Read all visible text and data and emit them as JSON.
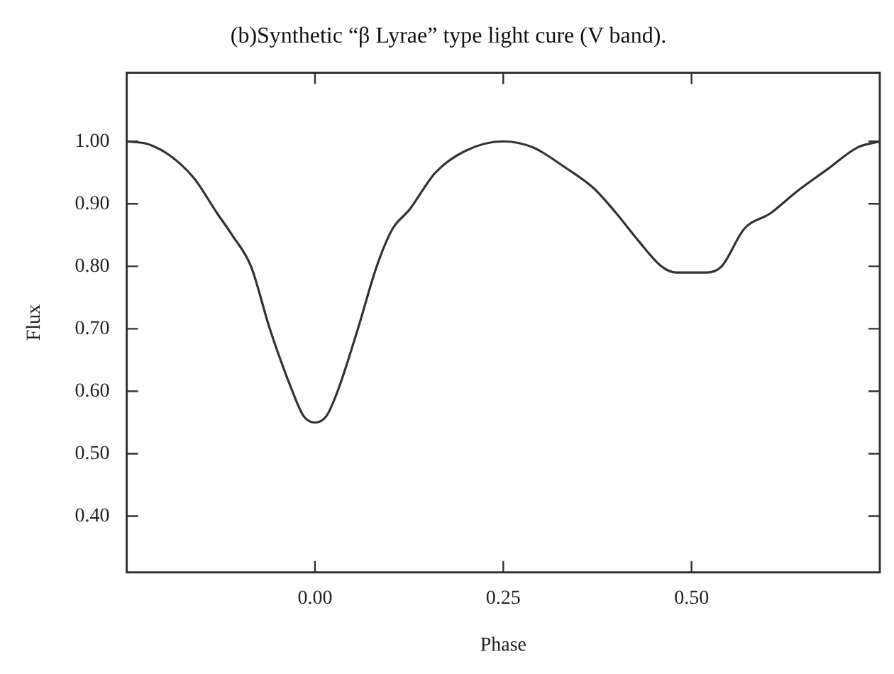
{
  "chart_data": {
    "type": "line",
    "title": "(b)Synthetic “β Lyrae” type light cure (V band).",
    "xlabel": "Phase",
    "ylabel": "Flux",
    "x": [
      -0.25,
      -0.22,
      -0.19,
      -0.16,
      -0.13,
      -0.11,
      -0.085,
      -0.06,
      -0.03,
      -0.015,
      0,
      0.015,
      0.03,
      0.057,
      0.082,
      0.103,
      0.125,
      0.16,
      0.2,
      0.25,
      0.29,
      0.33,
      0.37,
      0.4,
      0.43,
      0.46,
      0.48,
      0.52,
      0.54,
      0.57,
      0.605,
      0.64,
      0.68,
      0.72,
      0.75
    ],
    "series": [
      {
        "color": "#333333",
        "values": [
          1.0,
          0.995,
          0.975,
          0.94,
          0.885,
          0.85,
          0.8,
          0.7,
          0.6,
          0.56,
          0.55,
          0.56,
          0.6,
          0.7,
          0.8,
          0.86,
          0.89,
          0.95,
          0.985,
          1.0,
          0.99,
          0.96,
          0.925,
          0.885,
          0.84,
          0.8,
          0.79,
          0.79,
          0.8,
          0.86,
          0.885,
          0.92,
          0.955,
          0.99,
          1.0
        ]
      }
    ],
    "xlim": [
      -0.25,
      0.75
    ],
    "xticks": [
      {
        "value": 0,
        "label": "0.00"
      },
      0.25,
      {
        "value": 0.5,
        "label": "0.50"
      }
    ],
    "ylim": [
      0.31,
      1.11
    ],
    "yticks": [
      {
        "value": 0.4,
        "label": "0.40"
      },
      {
        "value": 0.5,
        "label": "0.50"
      },
      {
        "value": 0.6,
        "label": "0.60"
      },
      {
        "value": 0.7,
        "label": "0.70"
      },
      {
        "value": 0.8,
        "label": "0.80"
      },
      {
        "value": 0.9,
        "label": "0.90"
      },
      {
        "value": 1.0,
        "label": "1.00"
      }
    ],
    "grid": false,
    "legend": false,
    "marker": "none",
    "line_style": "solid"
  }
}
